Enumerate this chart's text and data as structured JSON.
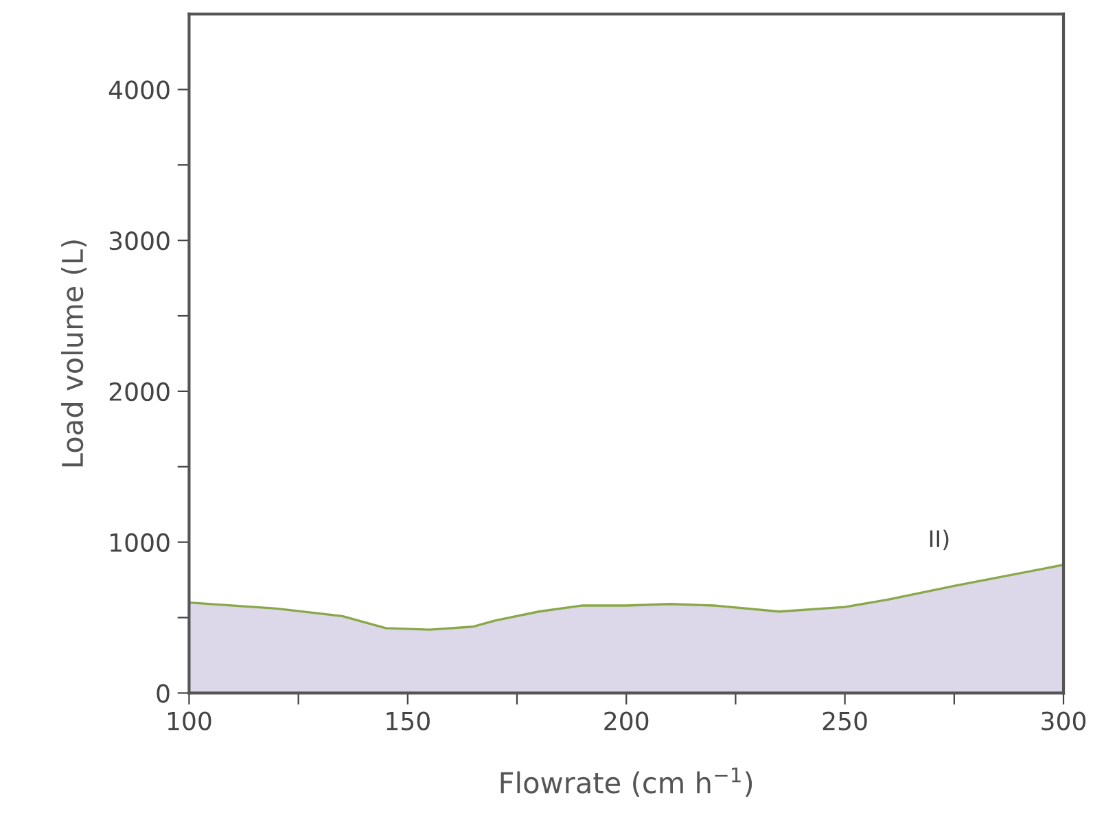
{
  "chart_data": {
    "type": "area",
    "xlabel": "Flowrate (cm h$^{−1}$)",
    "ylabel": "Load volume (L)",
    "x": [
      100,
      120,
      135,
      145,
      155,
      165,
      170,
      180,
      190,
      200,
      210,
      220,
      235,
      250,
      260,
      275,
      300
    ],
    "series": [
      {
        "color": "#dcd8ea",
        "values": [
          600,
          560,
          510,
          430,
          420,
          440,
          480,
          540,
          580,
          580,
          590,
          580,
          540,
          570,
          620,
          710,
          850
        ]
      }
    ],
    "annotations": [
      "II)"
    ],
    "xlim": [
      100,
      300
    ],
    "ylim": [
      0,
      4500
    ],
    "xticks": [
      100,
      {
        "value": 125,
        "label": null
      },
      150,
      {
        "value": 175,
        "label": null
      },
      200,
      {
        "value": 225,
        "label": null
      },
      250,
      {
        "value": 275,
        "label": null
      },
      300
    ],
    "yticks": [
      0,
      {
        "value": 500,
        "label": null
      },
      1000,
      {
        "value": 1500,
        "label": null
      },
      2000,
      {
        "value": 2500,
        "label": null
      },
      3000,
      {
        "value": 3500,
        "label": null
      },
      4000
    ],
    "grid": false,
    "legend": false
  }
}
